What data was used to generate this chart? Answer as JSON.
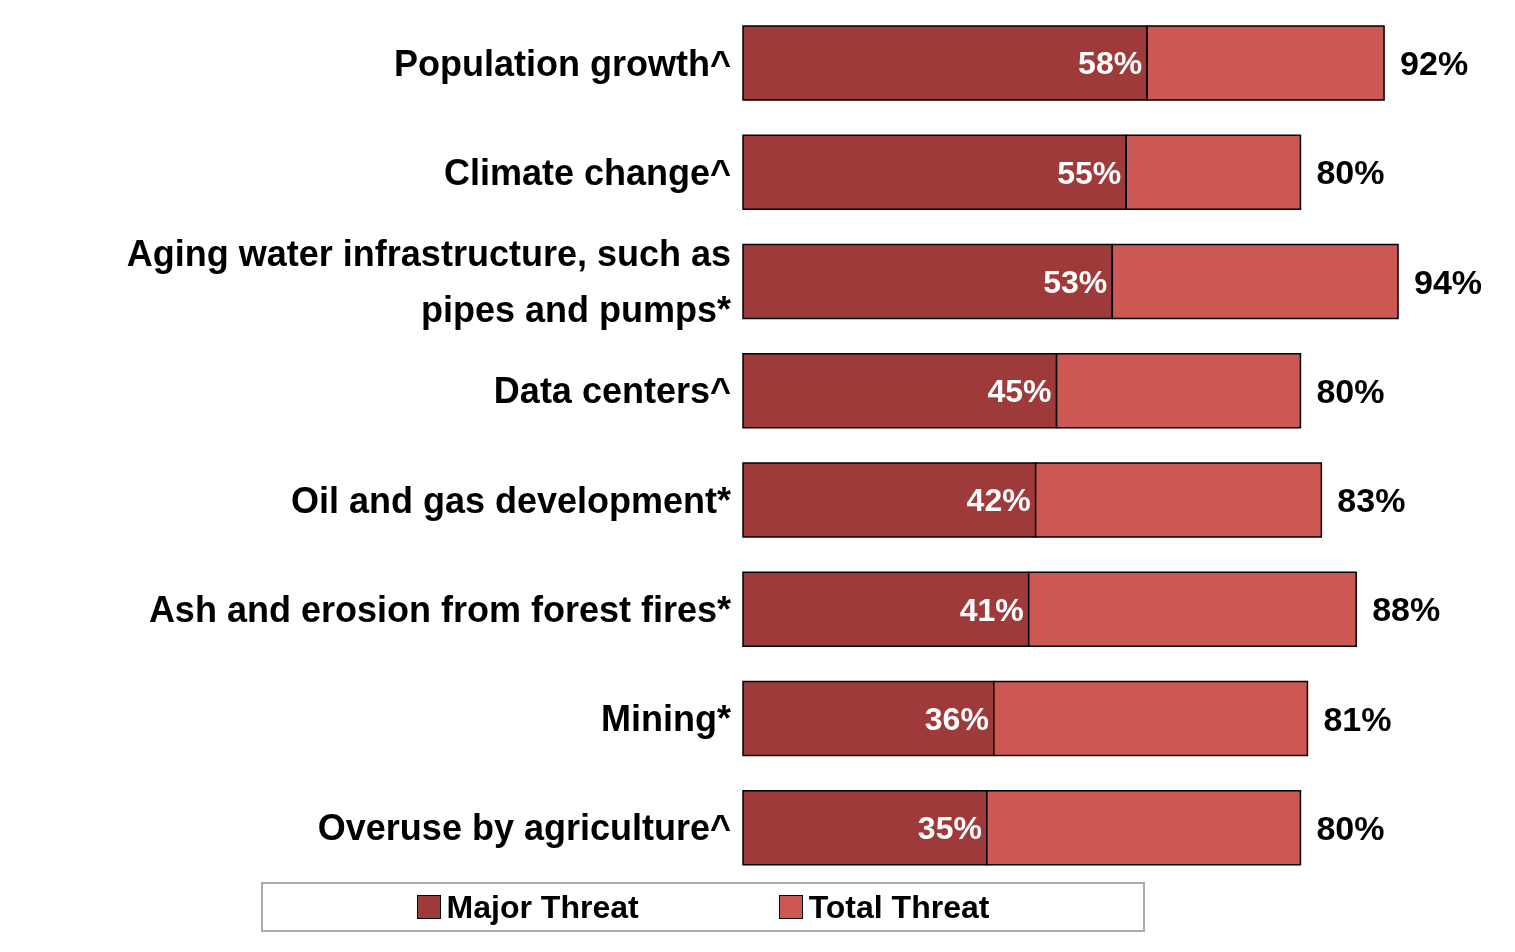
{
  "chart_data": {
    "type": "bar",
    "orientation": "horizontal",
    "stacked": true,
    "legend": "bottom",
    "categories": [
      "Population growth^",
      "Climate change^",
      "Aging water infrastructure, such as pipes and pumps*",
      "Data centers^",
      "Oil and gas development*",
      "Ash and erosion from forest fires*",
      "Mining*",
      "Overuse by agriculture^"
    ],
    "series": [
      {
        "name": "Major Threat",
        "color": "#9e3b3a",
        "values": [
          58,
          55,
          53,
          45,
          42,
          41,
          36,
          35
        ],
        "value_labels": [
          "58%",
          "55%",
          "53%",
          "45%",
          "42%",
          "41%",
          "36%",
          "35%"
        ]
      },
      {
        "name": "Total Threat",
        "color": "#cd5753",
        "values": [
          34,
          25,
          41,
          35,
          41,
          47,
          45,
          45
        ]
      }
    ],
    "totals": [
      "92%",
      "80%",
      "94%",
      "80%",
      "83%",
      "88%",
      "81%",
      "80%"
    ]
  }
}
